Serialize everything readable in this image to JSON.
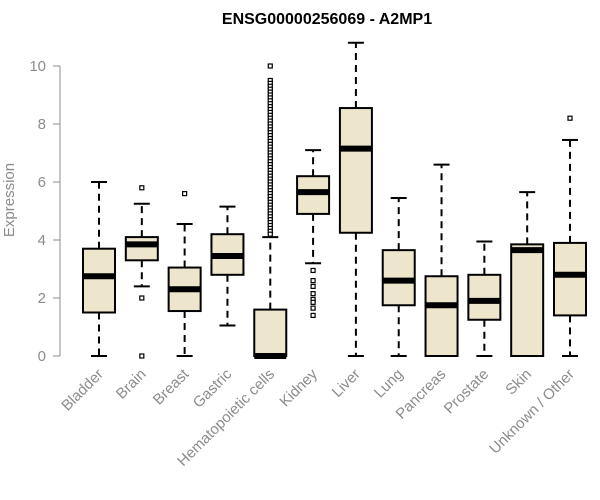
{
  "chart_data": {
    "type": "boxplot",
    "title": "ENSG00000256069 - A2MP1",
    "xlabel": "",
    "ylabel": "Expression",
    "ylim": [
      0,
      11
    ],
    "yticks": [
      0,
      2,
      4,
      6,
      8,
      10
    ],
    "grid": false,
    "legend": "none",
    "box_fill": "#ede6cc",
    "categories": [
      "Bladder",
      "Brain",
      "Breast",
      "Gastric",
      "Hematopoietic cells",
      "Kidney",
      "Liver",
      "Lung",
      "Pancreas",
      "Prostate",
      "Skin",
      "Unknown / Other"
    ],
    "boxes": [
      {
        "min": 0.0,
        "q1": 1.5,
        "median": 2.75,
        "q3": 3.7,
        "max": 6.0,
        "outliers": []
      },
      {
        "min": 2.4,
        "q1": 3.3,
        "median": 3.85,
        "q3": 4.1,
        "max": 5.25,
        "outliers": [
          5.8,
          2.0,
          0.0
        ]
      },
      {
        "min": 0.0,
        "q1": 1.55,
        "median": 2.3,
        "q3": 3.05,
        "max": 4.55,
        "outliers": [
          5.6
        ]
      },
      {
        "min": 1.05,
        "q1": 2.8,
        "median": 3.45,
        "q3": 4.2,
        "max": 5.15,
        "outliers": []
      },
      {
        "min": 0.0,
        "q1": 0.0,
        "median": 0.0,
        "q3": 1.6,
        "max": 4.1,
        "outliers": [
          10.0,
          9.5,
          9.4,
          9.3,
          9.2,
          9.1,
          9.0,
          8.9,
          8.8,
          8.7,
          8.6,
          8.5,
          8.4,
          8.3,
          8.2,
          8.1,
          8.0,
          7.9,
          7.8,
          7.7,
          7.6,
          7.5,
          7.4,
          7.3,
          7.2,
          7.1,
          7.0,
          6.9,
          6.8,
          6.7,
          6.6,
          6.5,
          6.4,
          6.3,
          6.2,
          6.1,
          6.0,
          5.9,
          5.8,
          5.7,
          5.6,
          5.5,
          5.4,
          5.3,
          5.2,
          5.1,
          5.0,
          4.9,
          4.8,
          4.7,
          4.6,
          4.5,
          4.4,
          4.3,
          4.2
        ]
      },
      {
        "min": 3.2,
        "q1": 4.9,
        "median": 5.65,
        "q3": 6.2,
        "max": 7.1,
        "outliers": [
          2.95,
          2.6,
          2.4,
          2.15,
          1.95,
          1.85,
          1.65,
          1.4
        ]
      },
      {
        "min": 0.0,
        "q1": 4.25,
        "median": 7.15,
        "q3": 8.55,
        "max": 10.8,
        "outliers": []
      },
      {
        "min": 0.0,
        "q1": 1.75,
        "median": 2.6,
        "q3": 3.65,
        "max": 5.45,
        "outliers": []
      },
      {
        "min": 0.0,
        "q1": 0.0,
        "median": 1.75,
        "q3": 2.75,
        "max": 6.6,
        "outliers": []
      },
      {
        "min": 0.0,
        "q1": 1.25,
        "median": 1.9,
        "q3": 2.8,
        "max": 3.95,
        "outliers": []
      },
      {
        "min": 0.0,
        "q1": 0.0,
        "median": 3.65,
        "q3": 3.85,
        "max": 5.65,
        "outliers": []
      },
      {
        "min": 0.0,
        "q1": 1.4,
        "median": 2.8,
        "q3": 3.9,
        "max": 7.45,
        "outliers": [
          8.2
        ]
      }
    ]
  }
}
